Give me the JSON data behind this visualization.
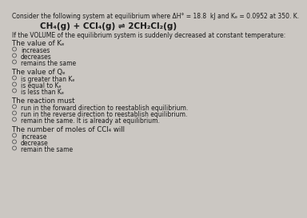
{
  "bg_color": "#cbc7c2",
  "title_line": "Consider the following system at equilibrium where ΔH° = 18.8  kJ and Kₑ = 0.0952 at 350. K.",
  "equation": "CH₄(g) + CCl₄(g) ⇌ 2CH₂Cl₂(g)",
  "condition": "If the VOLUME of the equilibrium system is suddenly decreased at constant temperature:",
  "sections": [
    {
      "heading": "The value of Kₑ",
      "options": [
        "increases",
        "decreases",
        "remains the same"
      ]
    },
    {
      "heading": "The value of Qₑ",
      "options": [
        "is greater than Kₑ",
        "is equal to Kₑ",
        "is less than Kₑ"
      ]
    },
    {
      "heading": "The reaction must",
      "options": [
        "run in the forward direction to reestablish equilibrium.",
        "run in the reverse direction to reestablish equilibrium.",
        "remain the same. It is already at equilibrium."
      ]
    },
    {
      "heading": "The number of moles of CCl₄ will",
      "options": [
        "increase",
        "decrease",
        "remain the same"
      ]
    }
  ],
  "text_color": "#1a1a1a",
  "heading_color": "#1a1a1a",
  "option_color": "#1a1a1a",
  "title_fontsize": 5.5,
  "equation_fontsize": 7.5,
  "condition_fontsize": 5.5,
  "heading_fontsize": 6.2,
  "option_fontsize": 5.5
}
